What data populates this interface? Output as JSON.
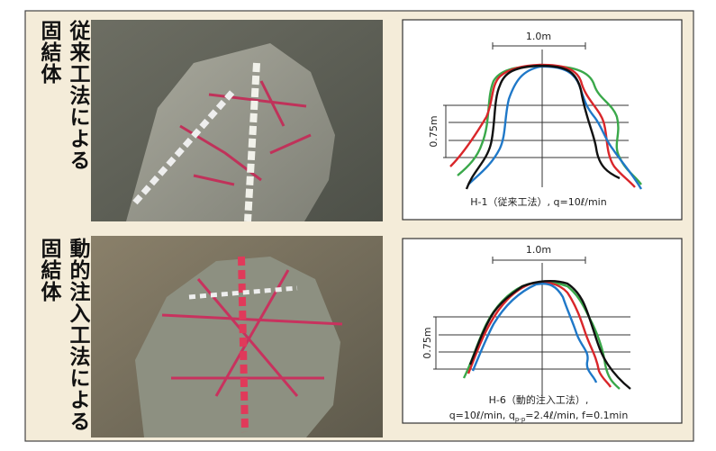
{
  "rows": [
    {
      "label_columns": [
        "従来工法による",
        "固結体"
      ],
      "diagram": {
        "scale_label": "1.0m",
        "height_label": "0.75m",
        "caption": [
          "H-1（従来工法）, q=10ℓ/min"
        ]
      }
    },
    {
      "label_columns": [
        "動的注入工法による",
        "固結体"
      ],
      "diagram": {
        "scale_label": "1.0m",
        "height_label": "0.75m",
        "caption": [
          "H-6（動的注入工法）,",
          "q=10ℓ/min, q",
          "p-p",
          "=2.4ℓ/min, f=0.1min"
        ]
      }
    }
  ]
}
